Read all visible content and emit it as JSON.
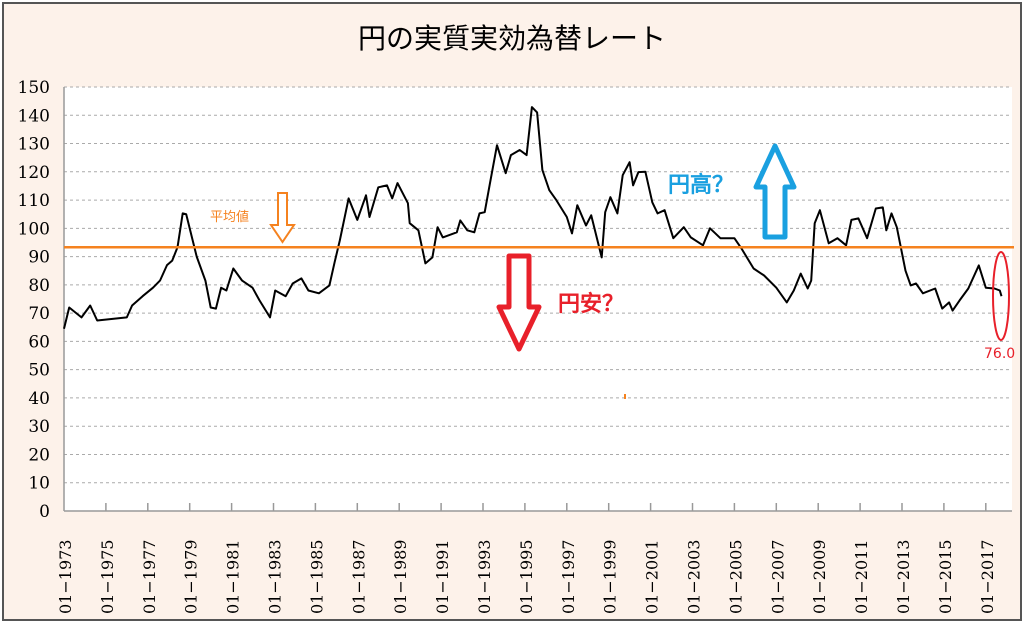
{
  "chart_data": {
    "type": "line",
    "title": "円の実質実効為替レート",
    "xlabel": "",
    "ylabel": "",
    "ylim": [
      0,
      150
    ],
    "yticks": [
      0,
      10,
      20,
      30,
      40,
      50,
      60,
      70,
      80,
      90,
      100,
      110,
      120,
      130,
      140,
      150
    ],
    "xticks": [
      "01−1973",
      "01−1975",
      "01−1977",
      "01−1979",
      "01−1981",
      "01−1983",
      "01−1985",
      "01−1987",
      "01−1989",
      "01−1991",
      "01−1993",
      "01−1995",
      "01−1997",
      "01−1999",
      "01−2001",
      "01−2003",
      "01−2005",
      "01−2007",
      "01−2009",
      "01−2011",
      "01−2013",
      "01−2015",
      "01−2017"
    ],
    "grid": true,
    "legend": "none",
    "colors": {
      "series": "#000000",
      "average": "#f5821f",
      "up": "#1aa0e0",
      "down": "#e8202a",
      "background": "#fdf2ea",
      "plot": "#ffffff"
    },
    "average": {
      "label": "平均値",
      "value": 93.3
    },
    "annotations": {
      "up_label": "円高？",
      "down_label": "円安？",
      "latest_label": "76.0"
    },
    "series": [
      {
        "points": [
          [
            "1973-01",
            64.5
          ],
          [
            "1973-04",
            72
          ],
          [
            "1973-11",
            68.5
          ],
          [
            "1974-04",
            72.7
          ],
          [
            "1974-08",
            67.4
          ],
          [
            "1976-01",
            68.5
          ],
          [
            "1976-04",
            72.7
          ],
          [
            "1976-10",
            76
          ],
          [
            "1977-04",
            79
          ],
          [
            "1977-08",
            81.5
          ],
          [
            "1977-12",
            87
          ],
          [
            "1978-03",
            88.6
          ],
          [
            "1978-06",
            93.3
          ],
          [
            "1978-09",
            105.3
          ],
          [
            "1978-11",
            105
          ],
          [
            "1979-05",
            90
          ],
          [
            "1979-10",
            81.5
          ],
          [
            "1980-01",
            72
          ],
          [
            "1980-04",
            71.6
          ],
          [
            "1980-07",
            79
          ],
          [
            "1980-10",
            78
          ],
          [
            "1981-02",
            85.8
          ],
          [
            "1981-07",
            81.5
          ],
          [
            "1982-01",
            79
          ],
          [
            "1982-05",
            74.5
          ],
          [
            "1982-11",
            68.5
          ],
          [
            "1983-02",
            78
          ],
          [
            "1983-08",
            76
          ],
          [
            "1983-12",
            80.5
          ],
          [
            "1984-05",
            82.3
          ],
          [
            "1984-09",
            78
          ],
          [
            "1985-03",
            77
          ],
          [
            "1985-09",
            79.8
          ],
          [
            "1985-12",
            88
          ],
          [
            "1986-03",
            95.7
          ],
          [
            "1986-08",
            110.6
          ],
          [
            "1987-01",
            103
          ],
          [
            "1987-06",
            111.7
          ],
          [
            "1987-08",
            104
          ],
          [
            "1988-01",
            114.5
          ],
          [
            "1988-06",
            115.2
          ],
          [
            "1988-09",
            110.6
          ],
          [
            "1988-12",
            116
          ],
          [
            "1989-06",
            108.9
          ],
          [
            "1989-07",
            101.8
          ],
          [
            "1989-12",
            99.3
          ],
          [
            "1990-04",
            87.6
          ],
          [
            "1990-08",
            89.7
          ],
          [
            "1990-11",
            100.4
          ],
          [
            "1991-02",
            96.8
          ],
          [
            "1991-10",
            98.6
          ],
          [
            "1991-12",
            102.8
          ],
          [
            "1992-04",
            99.3
          ],
          [
            "1992-08",
            98.6
          ],
          [
            "1992-11",
            105.3
          ],
          [
            "1993-02",
            105.7
          ],
          [
            "1993-05",
            116
          ],
          [
            "1993-09",
            129.4
          ],
          [
            "1994-02",
            119.5
          ],
          [
            "1994-05",
            125.9
          ],
          [
            "1994-10",
            127.7
          ],
          [
            "1995-02",
            125.9
          ],
          [
            "1995-05",
            142.9
          ],
          [
            "1995-08",
            141
          ],
          [
            "1995-11",
            120.6
          ],
          [
            "1996-03",
            113.5
          ],
          [
            "1996-07",
            110
          ],
          [
            "1997-01",
            104
          ],
          [
            "1997-04",
            98.2
          ],
          [
            "1997-07",
            108.2
          ],
          [
            "1997-12",
            101
          ],
          [
            "1998-03",
            104.6
          ],
          [
            "1998-09",
            89.7
          ],
          [
            "1998-11",
            105.7
          ],
          [
            "1999-02",
            111
          ],
          [
            "1999-06",
            105.3
          ],
          [
            "1999-09",
            118.8
          ],
          [
            "2000-01",
            123.4
          ],
          [
            "2000-03",
            115.2
          ],
          [
            "2000-06",
            119.9
          ],
          [
            "2000-10",
            120
          ],
          [
            "2001-02",
            109.2
          ],
          [
            "2001-05",
            105.3
          ],
          [
            "2001-09",
            106.4
          ],
          [
            "2002-02",
            96.5
          ],
          [
            "2002-08",
            100.4
          ],
          [
            "2002-12",
            96.8
          ],
          [
            "2003-07",
            94
          ],
          [
            "2003-11",
            100
          ],
          [
            "2004-05",
            96.5
          ],
          [
            "2005-01",
            96.5
          ],
          [
            "2005-05",
            92.9
          ],
          [
            "2005-12",
            85.8
          ],
          [
            "2006-06",
            83.3
          ],
          [
            "2007-01",
            79
          ],
          [
            "2007-07",
            73.8
          ],
          [
            "2007-11",
            78
          ],
          [
            "2008-03",
            84
          ],
          [
            "2008-07",
            78.7
          ],
          [
            "2008-09",
            81.5
          ],
          [
            "2008-11",
            101.8
          ],
          [
            "2009-02",
            106.4
          ],
          [
            "2009-03",
            104
          ],
          [
            "2009-07",
            94.7
          ],
          [
            "2009-12",
            96.5
          ],
          [
            "2010-05",
            94
          ],
          [
            "2010-08",
            103
          ],
          [
            "2010-12",
            103.5
          ],
          [
            "2011-05",
            96.5
          ],
          [
            "2011-10",
            107
          ],
          [
            "2012-02",
            107.4
          ],
          [
            "2012-04",
            99.3
          ],
          [
            "2012-07",
            105.3
          ],
          [
            "2012-10",
            100.4
          ],
          [
            "2013-03",
            85
          ],
          [
            "2013-06",
            79.8
          ],
          [
            "2013-09",
            80.5
          ],
          [
            "2014-01",
            77
          ],
          [
            "2014-08",
            78.7
          ],
          [
            "2014-12",
            71.6
          ],
          [
            "2015-04",
            73.8
          ],
          [
            "2015-06",
            70.9
          ],
          [
            "2015-10",
            74.5
          ],
          [
            "2016-03",
            78.7
          ],
          [
            "2016-09",
            86.9
          ],
          [
            "2017-01",
            79
          ],
          [
            "2017-06",
            78.7
          ],
          [
            "2017-09",
            78
          ],
          [
            "2017-10",
            76
          ]
        ]
      }
    ]
  }
}
